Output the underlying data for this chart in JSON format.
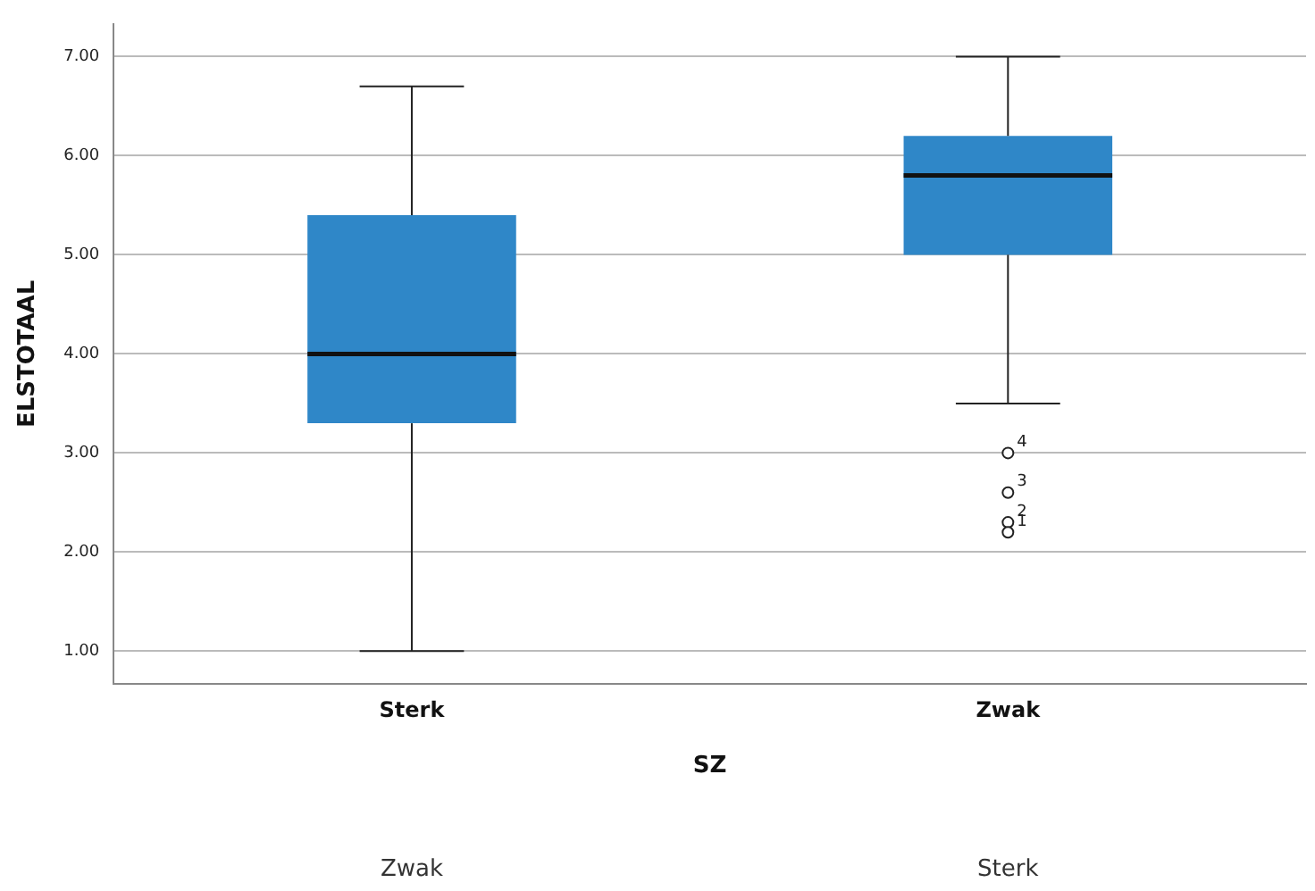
{
  "chart_data": {
    "type": "box",
    "xlabel": "SZ",
    "ylabel": "ELSTOTAAL",
    "categories": [
      "Sterk",
      "Zwak"
    ],
    "boxes": [
      {
        "low": 1.0,
        "q1": 3.3,
        "median": 4.0,
        "q3": 5.4,
        "high": 6.7
      },
      {
        "low": 3.5,
        "q1": 5.0,
        "median": 5.8,
        "q3": 6.2,
        "high": 7.0,
        "outliers": [
          3.0,
          2.6,
          2.3,
          2.2
        ]
      }
    ],
    "color": "#2f87c8",
    "ylim": [
      0.67,
      7.33
    ],
    "yticks": [
      {
        "value": 1,
        "label": "1.00"
      },
      {
        "value": 2,
        "label": "2.00"
      },
      {
        "value": 3,
        "label": "3.00"
      },
      {
        "value": 4,
        "label": "4.00"
      },
      {
        "value": 5,
        "label": "5.00"
      },
      {
        "value": 6,
        "label": "6.00"
      },
      {
        "value": 7,
        "label": "7.00"
      }
    ],
    "grid": "y",
    "legend": false,
    "marker": "circle",
    "annotations": [
      "4",
      "3",
      "2",
      "1",
      "Zwak",
      "Sterk"
    ]
  }
}
